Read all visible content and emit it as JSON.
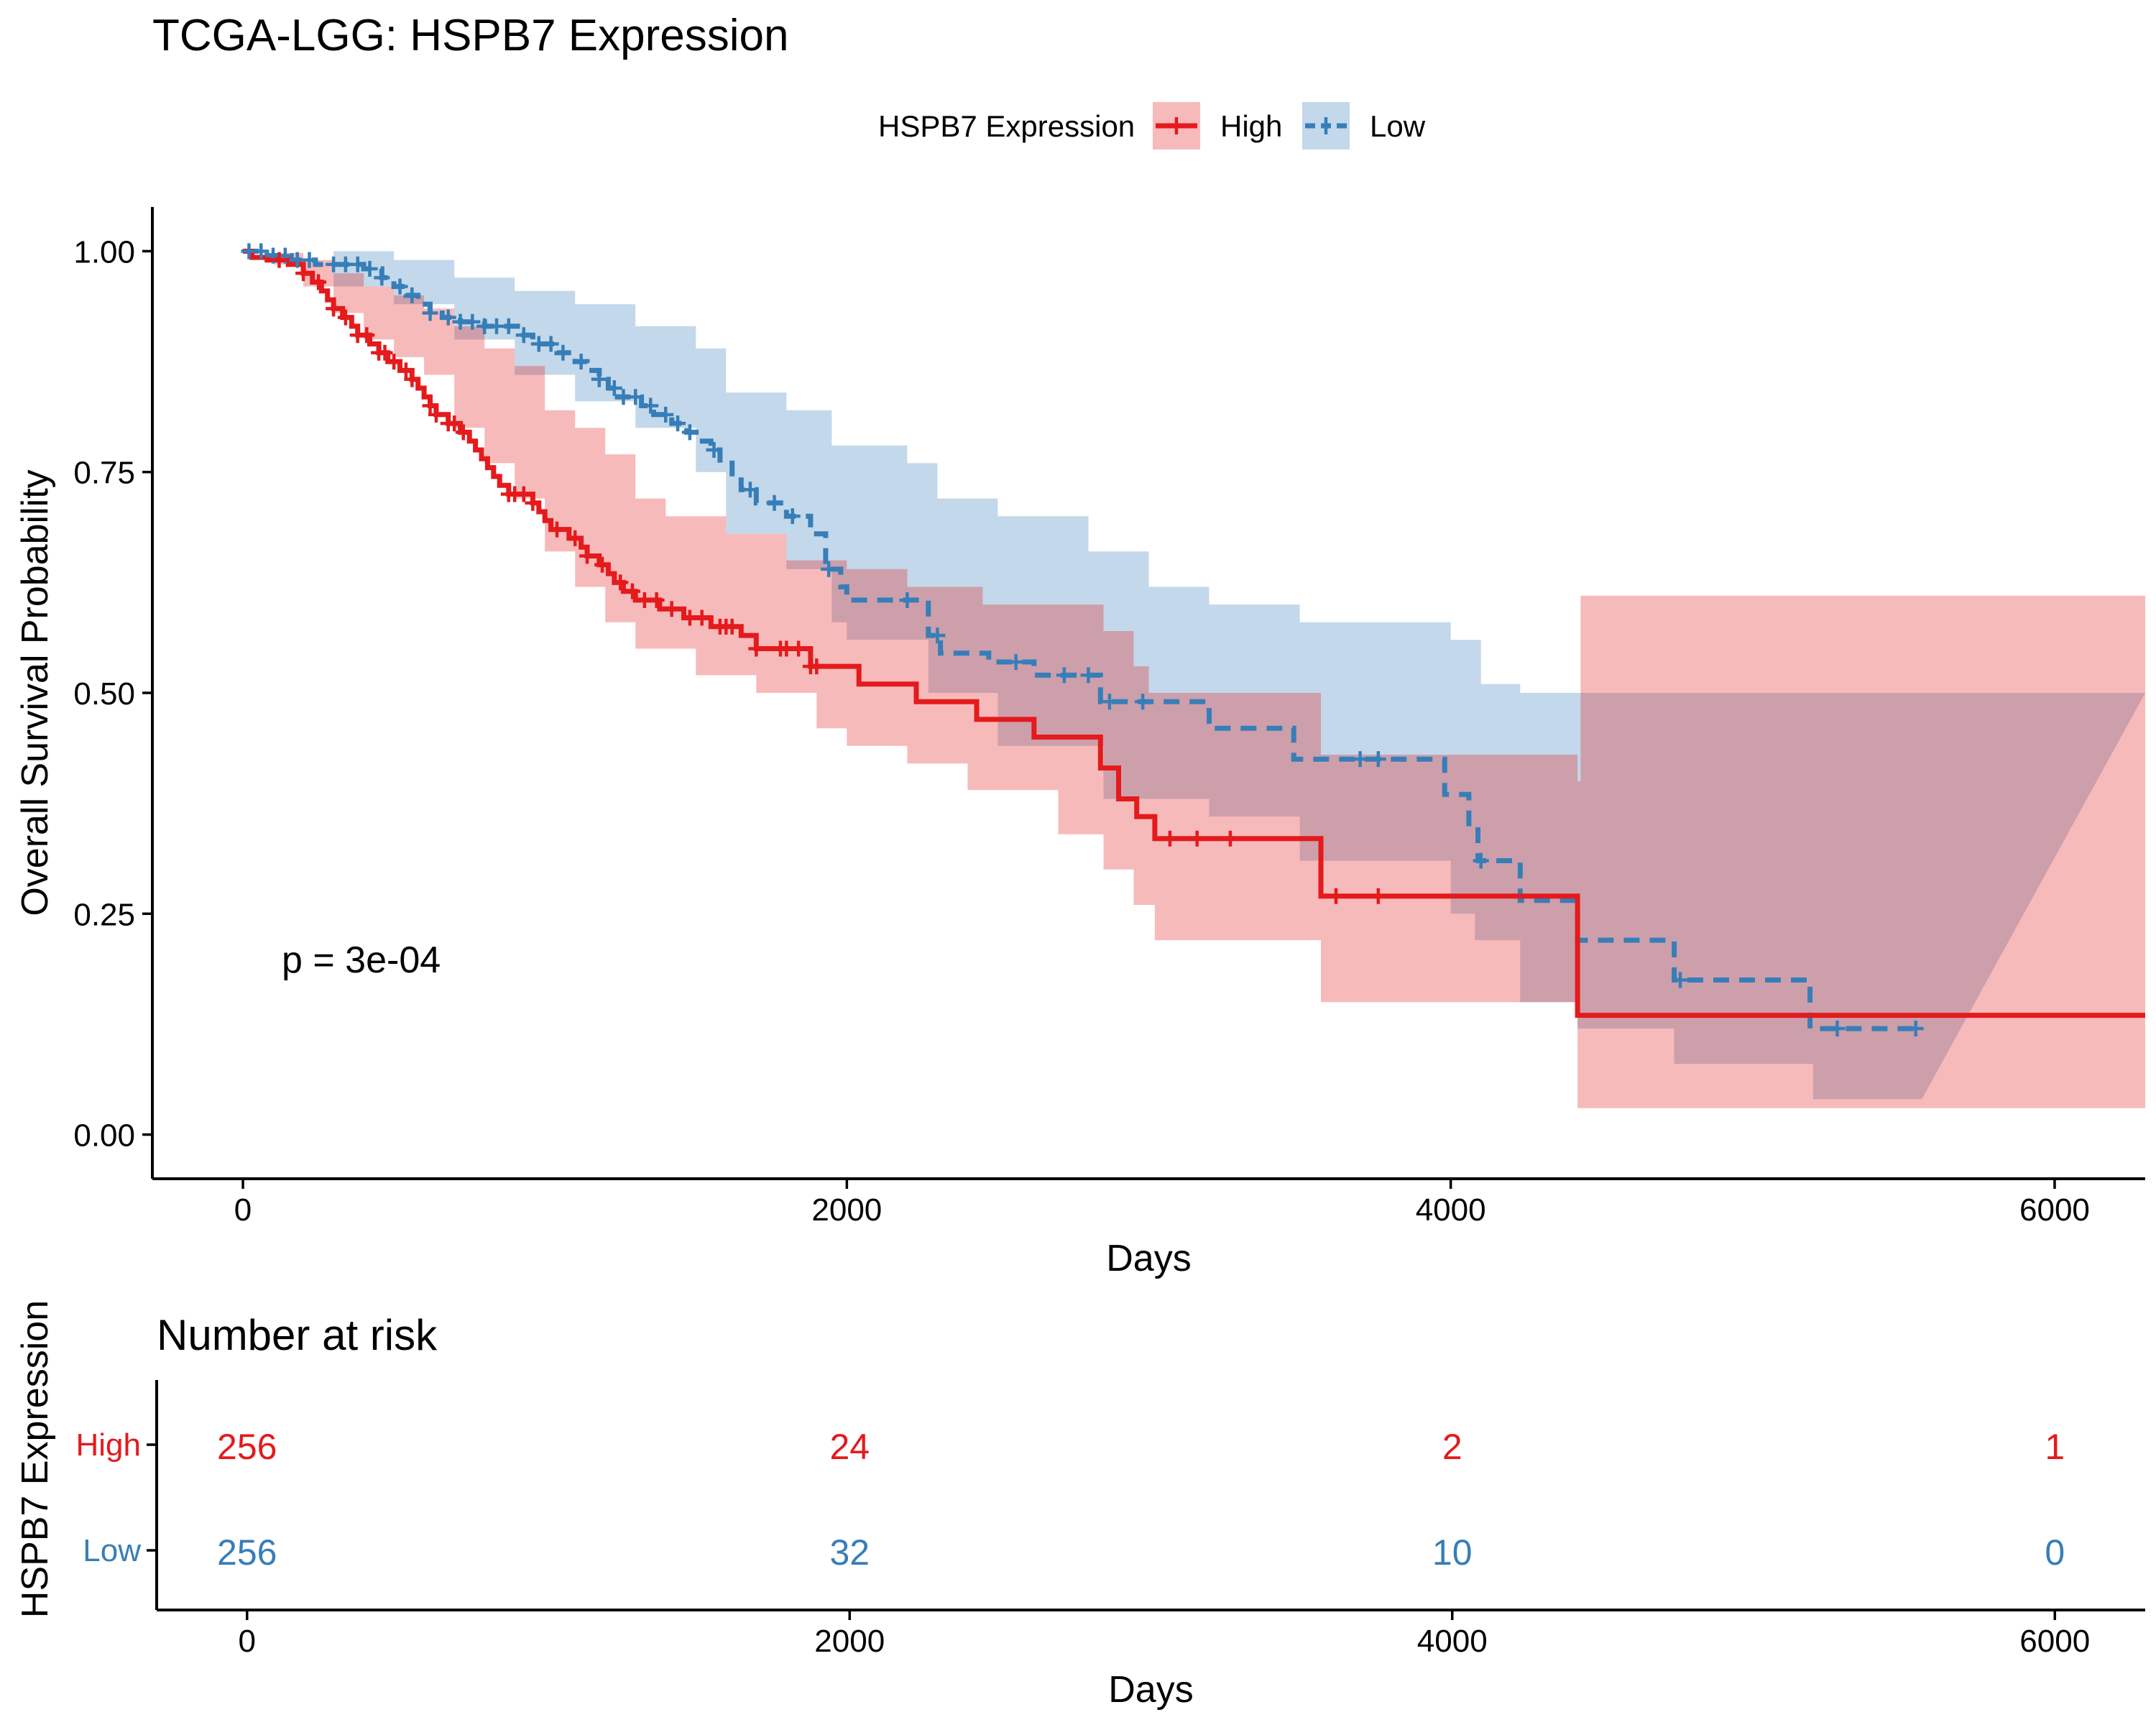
{
  "colors": {
    "high": "#E41A1C",
    "low": "#377EB8",
    "axis": "#000000"
  },
  "chart_data": [
    {
      "type": "line",
      "subtype": "kaplan-meier",
      "title": "TCGA-LGG: HSPB7 Expression",
      "xlabel": "Days",
      "ylabel": "Overall Survival Probability",
      "xlim": [
        -300,
        6300
      ],
      "ylim": [
        -0.05,
        1.05
      ],
      "xticks": [
        0,
        2000,
        4000,
        6000
      ],
      "xtick_labels": [
        "0",
        "2000",
        "4000",
        "6000"
      ],
      "yticks": [
        0,
        0.25,
        0.5,
        0.75,
        1.0
      ],
      "ytick_labels": [
        "0.00",
        "0.25",
        "0.50",
        "0.75",
        "1.00"
      ],
      "grid": false,
      "legend": {
        "title": "HSPB7 Expression",
        "position": "top",
        "entries": [
          "High",
          "Low"
        ]
      },
      "annotation": "p = 3e-04",
      "series": [
        {
          "name": "High",
          "color": "#E41A1C",
          "linestyle": "solid",
          "steps": [
            [
              0,
              1.0
            ],
            [
              30,
              0.993
            ],
            [
              80,
              0.99
            ],
            [
              150,
              0.985
            ],
            [
              200,
              0.975
            ],
            [
              230,
              0.965
            ],
            [
              260,
              0.955
            ],
            [
              280,
              0.945
            ],
            [
              300,
              0.935
            ],
            [
              330,
              0.925
            ],
            [
              360,
              0.915
            ],
            [
              380,
              0.905
            ],
            [
              420,
              0.895
            ],
            [
              450,
              0.885
            ],
            [
              480,
              0.875
            ],
            [
              520,
              0.865
            ],
            [
              560,
              0.855
            ],
            [
              580,
              0.845
            ],
            [
              600,
              0.835
            ],
            [
              620,
              0.825
            ],
            [
              640,
              0.815
            ],
            [
              680,
              0.805
            ],
            [
              720,
              0.795
            ],
            [
              750,
              0.785
            ],
            [
              770,
              0.775
            ],
            [
              790,
              0.765
            ],
            [
              810,
              0.755
            ],
            [
              830,
              0.745
            ],
            [
              850,
              0.735
            ],
            [
              880,
              0.725
            ],
            [
              960,
              0.715
            ],
            [
              980,
              0.705
            ],
            [
              1000,
              0.695
            ],
            [
              1020,
              0.685
            ],
            [
              1080,
              0.675
            ],
            [
              1120,
              0.665
            ],
            [
              1140,
              0.655
            ],
            [
              1180,
              0.645
            ],
            [
              1210,
              0.635
            ],
            [
              1230,
              0.625
            ],
            [
              1260,
              0.615
            ],
            [
              1300,
              0.605
            ],
            [
              1380,
              0.595
            ],
            [
              1460,
              0.585
            ],
            [
              1550,
              0.575
            ],
            [
              1650,
              0.565
            ],
            [
              1700,
              0.55
            ],
            [
              1880,
              0.53
            ],
            [
              2040,
              0.51
            ],
            [
              2230,
              0.49
            ],
            [
              2430,
              0.47
            ],
            [
              2620,
              0.45
            ],
            [
              2840,
              0.415
            ],
            [
              2900,
              0.38
            ],
            [
              2960,
              0.36
            ],
            [
              3020,
              0.335
            ],
            [
              3570,
              0.27
            ],
            [
              4420,
              0.135
            ],
            [
              6300,
              0.135
            ]
          ],
          "ci_upper": [
            [
              0,
              1.0
            ],
            [
              100,
              0.998
            ],
            [
              200,
              0.99
            ],
            [
              300,
              0.975
            ],
            [
              400,
              0.96
            ],
            [
              500,
              0.95
            ],
            [
              600,
              0.935
            ],
            [
              700,
              0.915
            ],
            [
              800,
              0.89
            ],
            [
              900,
              0.87
            ],
            [
              1000,
              0.82
            ],
            [
              1100,
              0.8
            ],
            [
              1200,
              0.77
            ],
            [
              1300,
              0.72
            ],
            [
              1400,
              0.7
            ],
            [
              1600,
              0.68
            ],
            [
              1800,
              0.65
            ],
            [
              2000,
              0.64
            ],
            [
              2200,
              0.62
            ],
            [
              2450,
              0.6
            ],
            [
              2850,
              0.57
            ],
            [
              2950,
              0.53
            ],
            [
              3000,
              0.5
            ],
            [
              3570,
              0.43
            ],
            [
              4420,
              0.4
            ],
            [
              4430,
              0.61
            ],
            [
              6300,
              0.61
            ]
          ],
          "ci_lower": [
            [
              0,
              1.0
            ],
            [
              100,
              0.985
            ],
            [
              200,
              0.96
            ],
            [
              300,
              0.93
            ],
            [
              400,
              0.9
            ],
            [
              500,
              0.88
            ],
            [
              600,
              0.86
            ],
            [
              700,
              0.8
            ],
            [
              800,
              0.76
            ],
            [
              900,
              0.72
            ],
            [
              1000,
              0.66
            ],
            [
              1100,
              0.62
            ],
            [
              1200,
              0.58
            ],
            [
              1300,
              0.55
            ],
            [
              1500,
              0.52
            ],
            [
              1700,
              0.5
            ],
            [
              1900,
              0.46
            ],
            [
              2000,
              0.44
            ],
            [
              2200,
              0.42
            ],
            [
              2400,
              0.39
            ],
            [
              2700,
              0.34
            ],
            [
              2850,
              0.3
            ],
            [
              2950,
              0.26
            ],
            [
              3020,
              0.22
            ],
            [
              3570,
              0.15
            ],
            [
              4420,
              0.03
            ],
            [
              6300,
              0.03
            ]
          ],
          "censor_marks_x": [
            120,
            200,
            250,
            300,
            340,
            380,
            410,
            450,
            470,
            500,
            540,
            560,
            620,
            640,
            680,
            700,
            730,
            880,
            900,
            930,
            960,
            1040,
            1100,
            1140,
            1190,
            1250,
            1290,
            1330,
            1370,
            1420,
            1480,
            1520,
            1580,
            1600,
            1620,
            1700,
            1780,
            1800,
            1840,
            1880,
            1900,
            3070,
            3160,
            3270,
            3620,
            3760
          ]
        },
        {
          "name": "Low",
          "color": "#377EB8",
          "linestyle": "dashed",
          "steps": [
            [
              0,
              1.0
            ],
            [
              80,
              0.995
            ],
            [
              160,
              0.99
            ],
            [
              240,
              0.985
            ],
            [
              400,
              0.98
            ],
            [
              460,
              0.97
            ],
            [
              500,
              0.96
            ],
            [
              540,
              0.95
            ],
            [
              580,
              0.94
            ],
            [
              620,
              0.93
            ],
            [
              660,
              0.925
            ],
            [
              720,
              0.92
            ],
            [
              800,
              0.915
            ],
            [
              920,
              0.905
            ],
            [
              960,
              0.895
            ],
            [
              1040,
              0.885
            ],
            [
              1100,
              0.875
            ],
            [
              1140,
              0.865
            ],
            [
              1180,
              0.855
            ],
            [
              1210,
              0.845
            ],
            [
              1240,
              0.835
            ],
            [
              1320,
              0.825
            ],
            [
              1360,
              0.815
            ],
            [
              1420,
              0.805
            ],
            [
              1470,
              0.795
            ],
            [
              1510,
              0.785
            ],
            [
              1550,
              0.775
            ],
            [
              1580,
              0.76
            ],
            [
              1620,
              0.745
            ],
            [
              1650,
              0.73
            ],
            [
              1700,
              0.715
            ],
            [
              1800,
              0.7
            ],
            [
              1880,
              0.68
            ],
            [
              1930,
              0.64
            ],
            [
              1980,
              0.62
            ],
            [
              2000,
              0.605
            ],
            [
              2270,
              0.565
            ],
            [
              2310,
              0.545
            ],
            [
              2470,
              0.535
            ],
            [
              2620,
              0.52
            ],
            [
              2840,
              0.49
            ],
            [
              3200,
              0.46
            ],
            [
              3480,
              0.425
            ],
            [
              3980,
              0.385
            ],
            [
              4060,
              0.345
            ],
            [
              4090,
              0.31
            ],
            [
              4230,
              0.265
            ],
            [
              4420,
              0.22
            ],
            [
              4740,
              0.175
            ],
            [
              5190,
              0.12
            ],
            [
              5560,
              0.12
            ]
          ],
          "ci_upper": [
            [
              0,
              1.0
            ],
            [
              300,
              1.0
            ],
            [
              500,
              0.99
            ],
            [
              700,
              0.97
            ],
            [
              900,
              0.955
            ],
            [
              1100,
              0.94
            ],
            [
              1300,
              0.915
            ],
            [
              1500,
              0.89
            ],
            [
              1600,
              0.84
            ],
            [
              1800,
              0.82
            ],
            [
              1950,
              0.78
            ],
            [
              2200,
              0.76
            ],
            [
              2300,
              0.72
            ],
            [
              2500,
              0.7
            ],
            [
              2800,
              0.66
            ],
            [
              3000,
              0.62
            ],
            [
              3200,
              0.6
            ],
            [
              3500,
              0.58
            ],
            [
              4000,
              0.56
            ],
            [
              4100,
              0.51
            ],
            [
              4230,
              0.5
            ],
            [
              4430,
              0.5
            ],
            [
              6300,
              0.5
            ]
          ],
          "ci_lower": [
            [
              0,
              1.0
            ],
            [
              300,
              0.96
            ],
            [
              500,
              0.94
            ],
            [
              700,
              0.9
            ],
            [
              900,
              0.86
            ],
            [
              1100,
              0.83
            ],
            [
              1300,
              0.8
            ],
            [
              1500,
              0.75
            ],
            [
              1600,
              0.68
            ],
            [
              1800,
              0.64
            ],
            [
              1950,
              0.58
            ],
            [
              2000,
              0.56
            ],
            [
              2270,
              0.5
            ],
            [
              2500,
              0.44
            ],
            [
              2850,
              0.38
            ],
            [
              3200,
              0.36
            ],
            [
              3500,
              0.31
            ],
            [
              4000,
              0.25
            ],
            [
              4080,
              0.22
            ],
            [
              4230,
              0.15
            ],
            [
              4420,
              0.12
            ],
            [
              4740,
              0.08
            ],
            [
              5200,
              0.04
            ],
            [
              5560,
              0.04
            ]
          ],
          "censor_marks_x": [
            20,
            60,
            100,
            140,
            180,
            220,
            300,
            340,
            380,
            420,
            460,
            520,
            560,
            620,
            680,
            720,
            760,
            800,
            840,
            880,
            930,
            980,
            1020,
            1060,
            1120,
            1180,
            1230,
            1260,
            1300,
            1350,
            1400,
            1440,
            1480,
            1560,
            1680,
            1760,
            1820,
            1940,
            2200,
            2300,
            2560,
            2720,
            2800,
            2870,
            2980,
            3700,
            3760,
            4100,
            4760,
            5280,
            5540
          ]
        }
      ]
    },
    {
      "type": "table",
      "title": "Number at risk",
      "xlabel": "Days",
      "ylabel": "HSPB7 Expression",
      "xlim": [
        -300,
        6300
      ],
      "xticks": [
        0,
        2000,
        4000,
        6000
      ],
      "xtick_labels": [
        "0",
        "2000",
        "4000",
        "6000"
      ],
      "rows": [
        {
          "name": "High",
          "color": "#E41A1C",
          "values": [
            "256",
            "24",
            "2",
            "1"
          ]
        },
        {
          "name": "Low",
          "color": "#377EB8",
          "values": [
            "256",
            "32",
            "10",
            "0"
          ]
        }
      ]
    }
  ]
}
